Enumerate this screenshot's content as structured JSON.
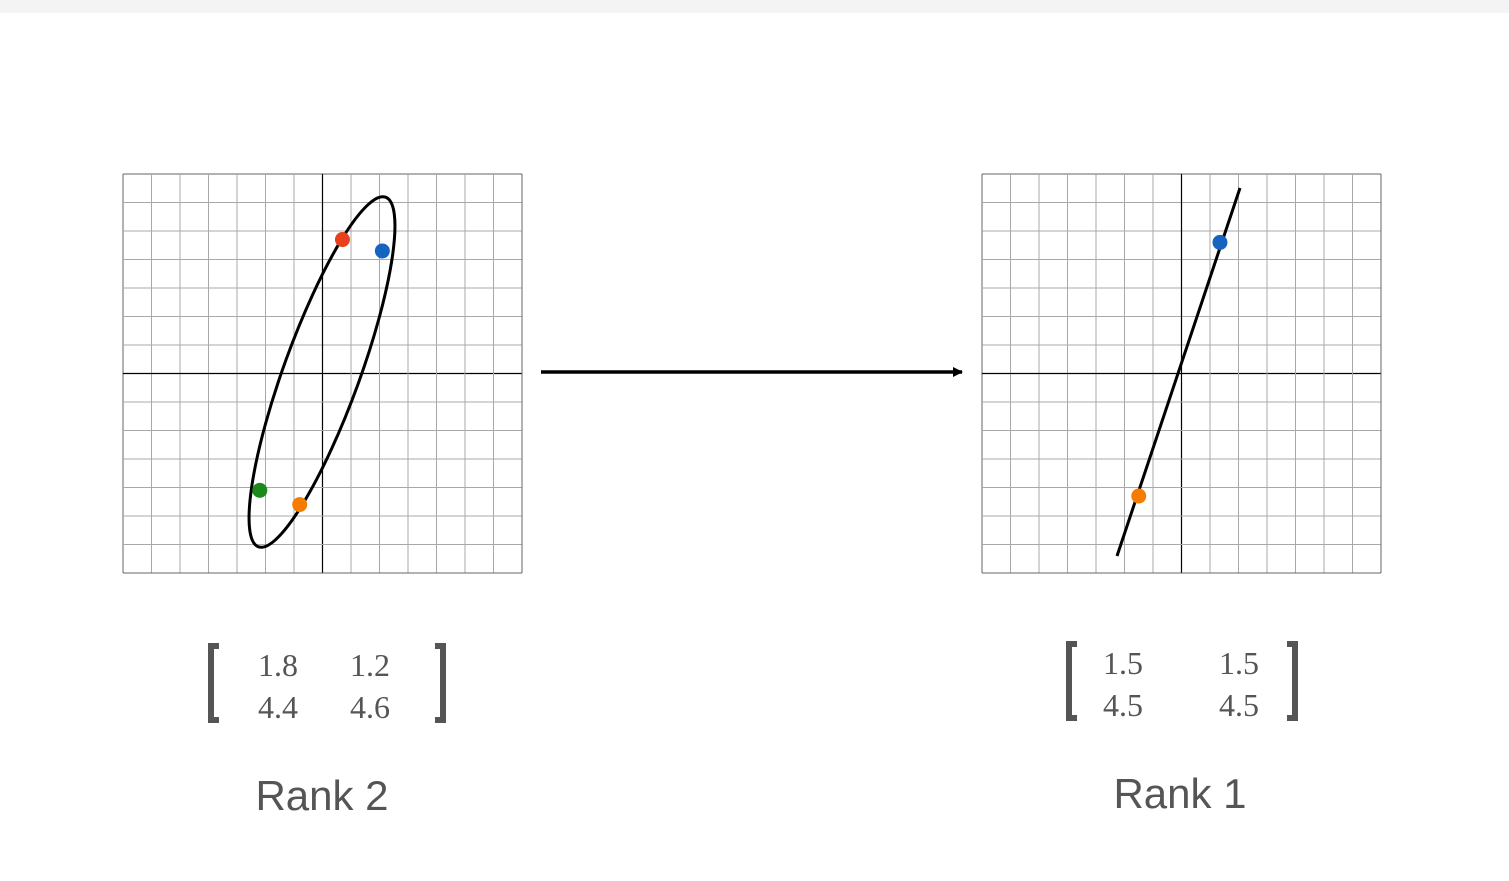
{
  "left": {
    "matrix": {
      "r1c1": "1.8",
      "r1c2": "1.2",
      "r2c1": "4.4",
      "r2c2": "4.6"
    },
    "label": "Rank 2",
    "points": [
      {
        "name": "red-point",
        "x": 0.7,
        "y": 4.7,
        "color": "#e8401c"
      },
      {
        "name": "blue-point",
        "x": 2.1,
        "y": 4.3,
        "color": "#1565c0"
      },
      {
        "name": "green-point",
        "x": -2.2,
        "y": -4.1,
        "color": "#1b8a1b"
      },
      {
        "name": "orange-point",
        "x": -0.8,
        "y": -4.6,
        "color": "#f57c00"
      }
    ]
  },
  "right": {
    "matrix": {
      "r1c1": "1.5",
      "r1c2": "1.5",
      "r2c1": "4.5",
      "r2c2": "4.5"
    },
    "label": "Rank 1",
    "points": [
      {
        "name": "blue-point",
        "x": 1.35,
        "y": 4.6,
        "color": "#1565c0"
      },
      {
        "name": "orange-point",
        "x": -1.5,
        "y": -4.3,
        "color": "#f57c00"
      }
    ]
  }
}
